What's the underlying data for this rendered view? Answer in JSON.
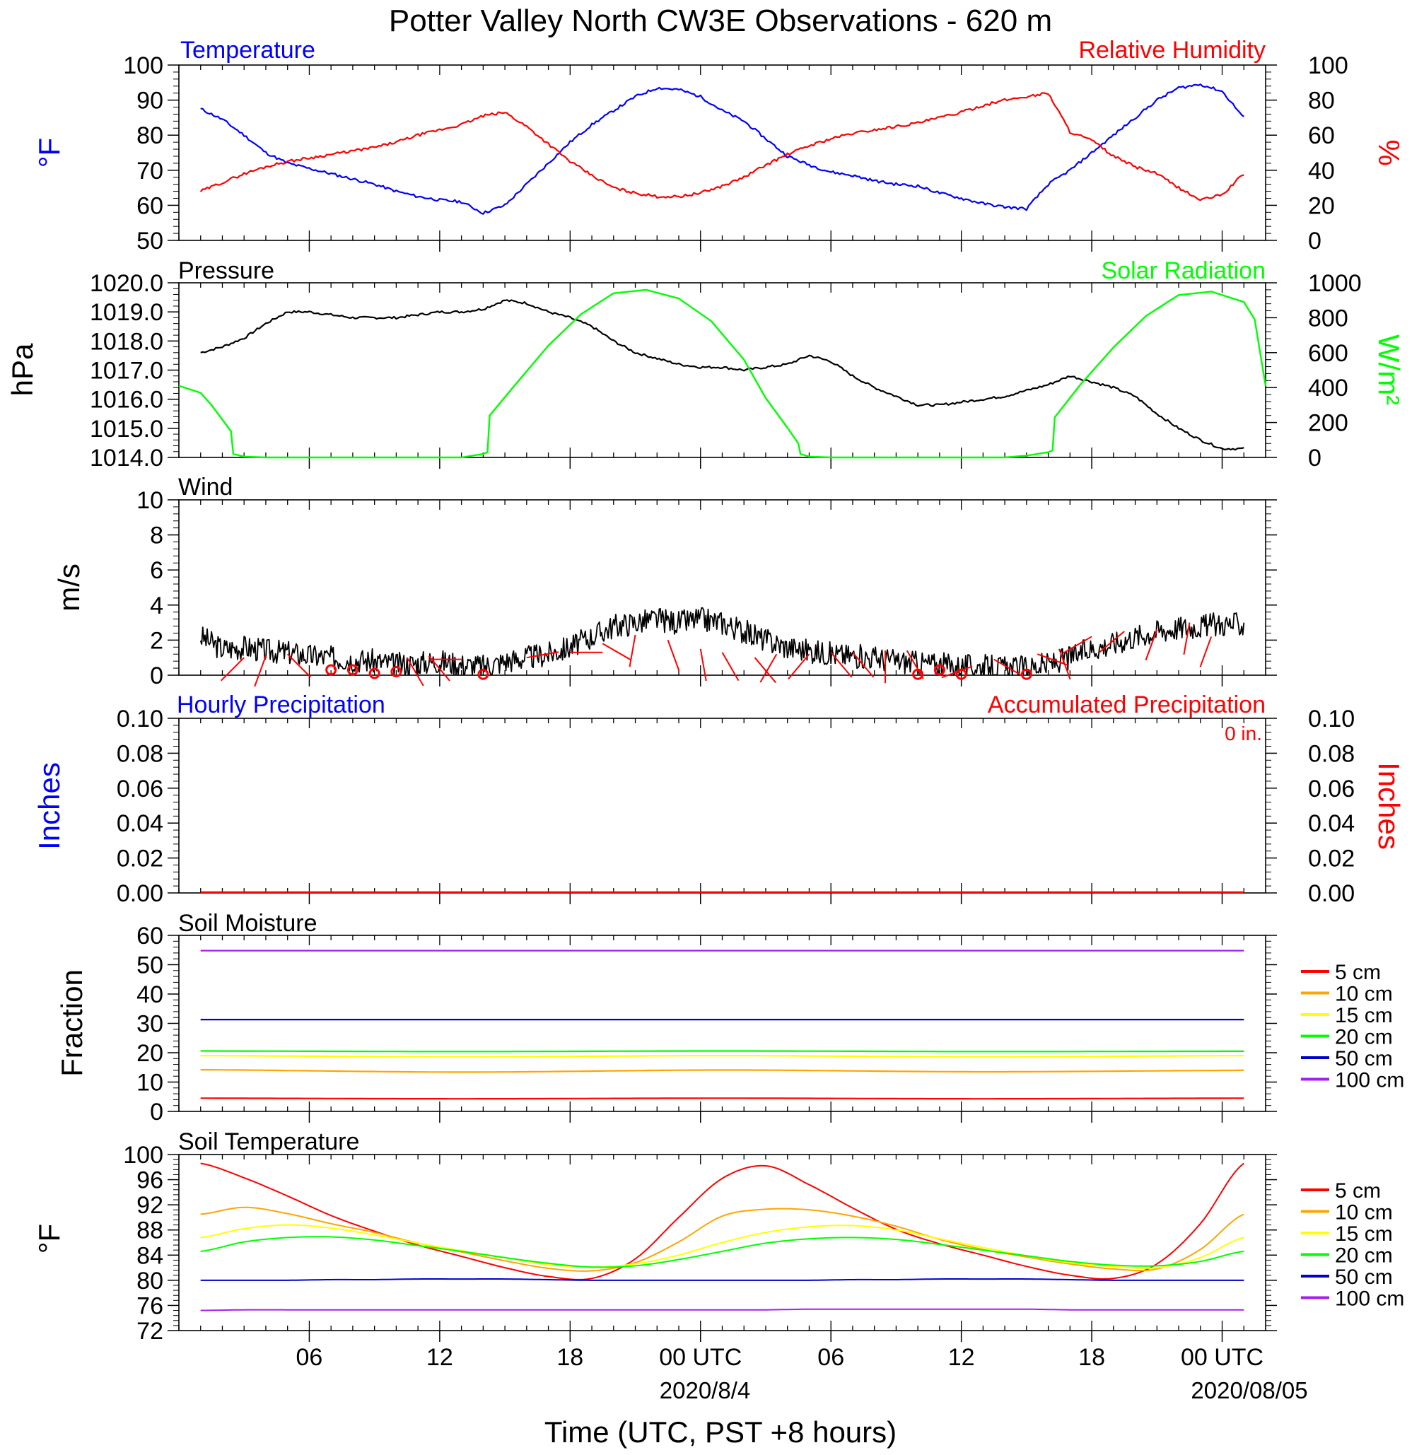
{
  "page": {
    "title": "Potter Valley North CW3E Observations - 620 m",
    "x_axis_title": "Time (UTC, PST +8 hours)",
    "x_ticks": [
      "06",
      "12",
      "18",
      "00 UTC",
      "06",
      "12",
      "18",
      "00 UTC"
    ],
    "date_labels": [
      "2020/8/4",
      "2020/08/05"
    ]
  },
  "chart_data": [
    {
      "panel": "temperature_humidity",
      "type": "line",
      "left_title": "Temperature",
      "right_title": "Relative Humidity",
      "left_ylabel": "°F",
      "right_ylabel": "%",
      "left_ylim": [
        50,
        100
      ],
      "right_ylim": [
        0,
        100
      ],
      "left_ticks": [
        "50",
        "60",
        "70",
        "80",
        "90",
        "100"
      ],
      "right_ticks": [
        "0",
        "20",
        "40",
        "60",
        "80",
        "100"
      ],
      "x_hours": [
        1,
        2,
        3,
        4,
        5,
        6,
        7,
        8,
        9,
        10,
        11,
        12,
        13,
        14,
        15,
        16,
        17,
        18,
        19,
        20,
        21,
        22,
        23,
        24,
        25,
        26,
        27,
        28,
        29,
        30,
        31,
        32,
        33,
        34,
        35,
        36,
        37,
        38,
        39,
        40,
        41,
        42,
        43,
        44,
        45,
        46,
        47,
        48,
        49
      ],
      "series": [
        {
          "name": "Temperature",
          "axis": "left",
          "color": "#0000ff",
          "values": [
            87.5,
            84.5,
            80,
            75,
            72,
            70.5,
            69,
            67.5,
            66,
            64,
            62.5,
            61.5,
            61,
            57.8,
            60,
            66,
            72,
            78,
            83,
            87,
            91,
            93.5,
            93,
            91,
            87,
            84,
            79,
            74,
            71.5,
            69.5,
            68.5,
            67,
            66,
            65.5,
            63.5,
            62,
            60.5,
            59.5,
            59,
            66,
            70,
            75,
            80,
            85,
            90,
            93.5,
            94.5,
            92.5,
            85
          ]
        },
        {
          "name": "Relative Humidity",
          "axis": "right",
          "color": "#ff0000",
          "values": [
            28,
            33,
            38,
            42,
            45,
            47,
            49,
            51,
            53,
            56,
            60,
            63,
            66,
            71,
            73,
            65,
            55,
            45,
            37,
            30,
            27,
            25,
            25,
            27,
            31,
            36,
            43,
            49,
            54,
            58,
            61,
            63,
            65,
            67,
            70,
            73,
            77,
            80,
            82,
            84,
            62,
            57,
            48,
            42,
            38,
            30,
            23,
            26,
            38
          ]
        }
      ]
    },
    {
      "panel": "pressure_solar",
      "type": "line",
      "left_title": "Pressure",
      "right_title": "Solar Radiation",
      "left_ylabel": "hPa",
      "right_ylabel": "W/m²",
      "left_ylim": [
        1014,
        1020
      ],
      "right_ylim": [
        0,
        1000
      ],
      "left_ticks": [
        "1014.0",
        "1015.0",
        "1016.0",
        "1017.0",
        "1018.0",
        "1019.0",
        "1020.0"
      ],
      "right_ticks": [
        "0",
        "200",
        "400",
        "600",
        "800",
        "1000"
      ],
      "series": [
        {
          "name": "Pressure",
          "axis": "left",
          "color": "#000000",
          "x_hours": [
            1,
            2,
            3,
            4,
            5,
            6,
            7,
            8,
            9,
            10,
            11,
            12,
            13,
            14,
            15,
            16,
            17,
            18,
            19,
            20,
            21,
            22,
            23,
            24,
            25,
            26,
            27,
            28,
            29,
            30,
            31,
            32,
            33,
            34,
            35,
            36,
            37,
            38,
            39,
            40,
            41,
            42,
            43,
            44,
            45,
            46,
            47,
            48,
            49
          ],
          "values": [
            1017.6,
            1017.8,
            1018.1,
            1018.6,
            1019.0,
            1019.0,
            1018.9,
            1018.8,
            1018.8,
            1018.8,
            1018.9,
            1019.0,
            1019.0,
            1019.1,
            1019.4,
            1019.3,
            1019.0,
            1018.8,
            1018.5,
            1018.0,
            1017.6,
            1017.4,
            1017.2,
            1017.1,
            1017.1,
            1017.0,
            1017.1,
            1017.2,
            1017.5,
            1017.3,
            1016.8,
            1016.4,
            1016.1,
            1015.8,
            1015.8,
            1015.9,
            1016.0,
            1016.1,
            1016.3,
            1016.5,
            1016.8,
            1016.6,
            1016.4,
            1016.1,
            1015.5,
            1015.0,
            1014.6,
            1014.3,
            1014.3
          ]
        },
        {
          "name": "Solar Radiation",
          "axis": "right",
          "color": "#00ff00",
          "x_hours": [
            0,
            1,
            1.5,
            2.4,
            2.5,
            3,
            4,
            8,
            12,
            13,
            14,
            14.2,
            14.3,
            15.5,
            17,
            18.5,
            20,
            21.5,
            23,
            24.5,
            26,
            27,
            28,
            28.5,
            28.6,
            29,
            30,
            34,
            38,
            39,
            40,
            40.2,
            40.3,
            41.5,
            43,
            44.5,
            46,
            47.5,
            49,
            49.5,
            50
          ],
          "values": [
            410,
            370,
            300,
            150,
            20,
            5,
            0,
            0,
            0,
            0,
            20,
            30,
            240,
            420,
            640,
            820,
            940,
            960,
            910,
            780,
            560,
            340,
            170,
            80,
            20,
            5,
            0,
            0,
            0,
            10,
            30,
            40,
            230,
            420,
            630,
            810,
            930,
            950,
            890,
            790,
            410
          ]
        }
      ]
    },
    {
      "panel": "wind",
      "type": "line",
      "left_title": "Wind",
      "left_ylabel": "m/s",
      "left_ylim": [
        0,
        10
      ],
      "left_ticks": [
        "0",
        "2",
        "4",
        "6",
        "8",
        "10"
      ],
      "series": [
        {
          "name": "Wind",
          "color": "#000000",
          "x_hours": [
            1,
            2,
            3,
            4,
            5,
            6,
            7,
            8,
            9,
            10,
            11,
            12,
            13,
            14,
            15,
            16,
            17,
            18,
            19,
            20,
            21,
            22,
            23,
            24,
            25,
            26,
            27,
            28,
            29,
            30,
            31,
            32,
            33,
            34,
            35,
            36,
            37,
            38,
            39,
            40,
            41,
            42,
            43,
            44,
            45,
            46,
            47,
            48,
            49
          ],
          "values": [
            2.2,
            1.5,
            1.6,
            1.4,
            1.3,
            1.1,
            1.0,
            0.9,
            0.8,
            0.6,
            0.7,
            0.8,
            0.6,
            0.5,
            0.8,
            1.0,
            1.2,
            1.6,
            2.2,
            2.8,
            3.0,
            3.2,
            3.0,
            3.2,
            3.0,
            2.5,
            2.0,
            1.6,
            1.4,
            1.2,
            1.1,
            1.0,
            0.8,
            0.7,
            0.6,
            0.5,
            0.5,
            0.4,
            0.4,
            0.6,
            1.0,
            1.5,
            1.8,
            2.2,
            2.5,
            2.7,
            2.8,
            2.9,
            2.9
          ]
        }
      ],
      "calm_marker_hours": [
        7,
        8,
        9,
        10,
        14,
        34,
        35,
        36,
        39
      ],
      "calm_marker_values": [
        0.3,
        0.3,
        0.1,
        0.2,
        0.05,
        0.05,
        0.3,
        0.05,
        0.05
      ],
      "barbs": [
        {
          "hour": 3,
          "value": 1.0,
          "dir": 225
        },
        {
          "hour": 4,
          "value": 1.1,
          "dir": 200
        },
        {
          "hour": 5,
          "value": 1.2,
          "dir": 135
        },
        {
          "hour": 10.5,
          "value": 1.0,
          "dir": 150
        },
        {
          "hour": 11.5,
          "value": 1.1,
          "dir": 140
        },
        {
          "hour": 13,
          "value": 0.9,
          "dir": 270
        },
        {
          "hour": 16,
          "value": 1.0,
          "dir": 80
        },
        {
          "hour": 18,
          "value": 1.3,
          "dir": 90
        },
        {
          "hour": 19.5,
          "value": 1.8,
          "dir": 120
        },
        {
          "hour": 21,
          "value": 2.3,
          "dir": 190
        },
        {
          "hour": 22.5,
          "value": 2.0,
          "dir": 160
        },
        {
          "hour": 24,
          "value": 1.5,
          "dir": 170
        },
        {
          "hour": 25,
          "value": 1.3,
          "dir": 150
        },
        {
          "hour": 26.5,
          "value": 1.0,
          "dir": 140
        },
        {
          "hour": 27.5,
          "value": 1.2,
          "dir": 210
        },
        {
          "hour": 29,
          "value": 1.2,
          "dir": 220
        },
        {
          "hour": 30,
          "value": 1.3,
          "dir": 140
        },
        {
          "hour": 31,
          "value": 1.3,
          "dir": 140
        },
        {
          "hour": 32.5,
          "value": 1.4,
          "dir": 180
        },
        {
          "hour": 33.5,
          "value": 1.4,
          "dir": 150
        },
        {
          "hour": 36.5,
          "value": 0.5,
          "dir": 250
        },
        {
          "hour": 37.5,
          "value": 0.9,
          "dir": 120
        },
        {
          "hour": 39.5,
          "value": 1.2,
          "dir": 110
        },
        {
          "hour": 40.5,
          "value": 1.5,
          "dir": 160
        },
        {
          "hour": 42,
          "value": 2.2,
          "dir": 240
        },
        {
          "hour": 43.5,
          "value": 2.5,
          "dir": 230
        },
        {
          "hour": 45,
          "value": 2.6,
          "dir": 200
        },
        {
          "hour": 46.5,
          "value": 3.0,
          "dir": 190
        },
        {
          "hour": 47.5,
          "value": 2.2,
          "dir": 200
        }
      ]
    },
    {
      "panel": "precipitation",
      "type": "line",
      "left_title": "Hourly Precipitation",
      "right_title": "Accumulated Precipitation",
      "total_label": "0 in.",
      "left_ylabel": "Inches",
      "right_ylabel": "Inches",
      "left_ylim": [
        0,
        0.1
      ],
      "right_ylim": [
        0,
        0.1
      ],
      "left_ticks": [
        "0.00",
        "0.02",
        "0.04",
        "0.06",
        "0.08",
        "0.10"
      ],
      "right_ticks": [
        "0.00",
        "0.02",
        "0.04",
        "0.06",
        "0.08",
        "0.10"
      ],
      "series": [
        {
          "name": "Accumulated Precipitation",
          "color": "#ff0000",
          "x_hours": [
            1,
            49
          ],
          "values": [
            0,
            0
          ]
        }
      ]
    },
    {
      "panel": "soil_moisture",
      "type": "line",
      "left_title": "Soil Moisture",
      "left_ylabel": "Fraction",
      "left_ylim": [
        0,
        60
      ],
      "left_ticks": [
        "0",
        "10",
        "20",
        "30",
        "40",
        "50",
        "60"
      ],
      "x_hours": [
        1,
        13,
        25,
        37,
        49
      ],
      "series": [
        {
          "name": "5 cm",
          "color": "#ff0000",
          "values": [
            4.5,
            4.3,
            4.5,
            4.3,
            4.5
          ]
        },
        {
          "name": "10 cm",
          "color": "#ffa500",
          "values": [
            14.2,
            13.4,
            14.1,
            13.5,
            14.0
          ]
        },
        {
          "name": "15 cm",
          "color": "#ffff00",
          "values": [
            19.0,
            18.6,
            19.0,
            18.6,
            19.0
          ]
        },
        {
          "name": "20 cm",
          "color": "#00ff00",
          "values": [
            20.6,
            20.4,
            20.6,
            20.4,
            20.5
          ]
        },
        {
          "name": "50 cm",
          "color": "#0000cd",
          "values": [
            31.3,
            31.3,
            31.3,
            31.3,
            31.3
          ]
        },
        {
          "name": "100 cm",
          "color": "#a020f0",
          "values": [
            54.8,
            54.8,
            54.8,
            54.8,
            54.8
          ]
        }
      ]
    },
    {
      "panel": "soil_temperature",
      "type": "line",
      "left_title": "Soil Temperature",
      "left_ylabel": "°F",
      "left_ylim": [
        72,
        100
      ],
      "left_ticks": [
        "72",
        "76",
        "80",
        "84",
        "88",
        "92",
        "96",
        "100"
      ],
      "x_hours": [
        1,
        3,
        5,
        7,
        9,
        11,
        13,
        15,
        17,
        19,
        21,
        23,
        25,
        27,
        29,
        31,
        33,
        35,
        37,
        39,
        41,
        43,
        45,
        47,
        49
      ],
      "series": [
        {
          "name": "5 cm",
          "color": "#ff0000",
          "values": [
            98.6,
            96.3,
            93.4,
            90.3,
            87.8,
            85.6,
            83.8,
            82.0,
            80.6,
            80.3,
            83.4,
            90.0,
            96.2,
            98.2,
            95.2,
            91.5,
            88.1,
            85.8,
            84.0,
            82.2,
            80.8,
            80.3,
            82.6,
            89.0,
            98.6
          ]
        },
        {
          "name": "10 cm",
          "color": "#ffa500",
          "values": [
            90.5,
            91.6,
            90.6,
            89.0,
            87.6,
            85.9,
            84.5,
            83.1,
            81.9,
            81.5,
            82.8,
            86.1,
            90.2,
            91.3,
            91.2,
            90.2,
            88.6,
            86.5,
            84.9,
            83.7,
            82.6,
            81.8,
            81.8,
            84.9,
            90.5
          ]
        },
        {
          "name": "15 cm",
          "color": "#ffff00",
          "values": [
            86.8,
            88.2,
            88.8,
            88.3,
            87.2,
            85.9,
            84.7,
            83.6,
            82.5,
            82.1,
            82.6,
            84.0,
            86.0,
            87.6,
            88.5,
            88.7,
            88.0,
            86.6,
            85.2,
            83.9,
            82.8,
            82.2,
            82.0,
            83.6,
            86.8
          ]
        },
        {
          "name": "20 cm",
          "color": "#00ff00",
          "values": [
            84.6,
            86.1,
            86.8,
            86.9,
            86.4,
            85.5,
            84.6,
            83.6,
            82.7,
            82.1,
            82.3,
            83.3,
            84.6,
            85.9,
            86.6,
            86.8,
            86.5,
            85.7,
            84.8,
            83.9,
            83.0,
            82.4,
            82.3,
            83.0,
            84.6
          ]
        },
        {
          "name": "50 cm",
          "color": "#0000cd",
          "values": [
            80.0,
            80.0,
            80.0,
            80.1,
            80.1,
            80.2,
            80.2,
            80.2,
            80.1,
            80.0,
            80.0,
            80.0,
            80.0,
            80.0,
            80.0,
            80.1,
            80.1,
            80.2,
            80.2,
            80.2,
            80.1,
            80.0,
            80.0,
            80.0,
            80.0
          ]
        },
        {
          "name": "100 cm",
          "color": "#a020f0",
          "values": [
            75.2,
            75.3,
            75.3,
            75.3,
            75.3,
            75.3,
            75.3,
            75.3,
            75.3,
            75.3,
            75.3,
            75.3,
            75.3,
            75.3,
            75.4,
            75.4,
            75.4,
            75.4,
            75.4,
            75.4,
            75.3,
            75.3,
            75.3,
            75.3,
            75.3
          ]
        }
      ]
    }
  ]
}
